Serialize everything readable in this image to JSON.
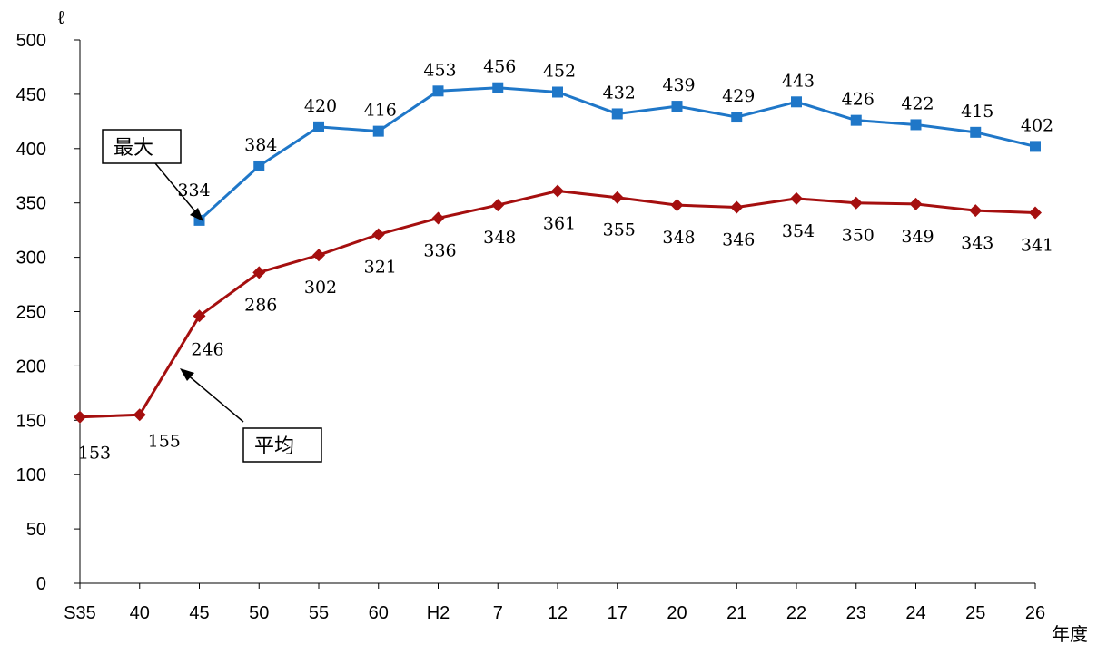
{
  "chart_data": {
    "type": "line",
    "categories": [
      "S35",
      "40",
      "45",
      "50",
      "55",
      "60",
      "H2",
      "7",
      "12",
      "17",
      "20",
      "21",
      "22",
      "23",
      "24",
      "25",
      "26"
    ],
    "series": [
      {
        "name": "最大",
        "color": "#1F77C8",
        "marker": "square",
        "values": [
          null,
          null,
          334,
          384,
          420,
          416,
          453,
          456,
          452,
          432,
          439,
          429,
          443,
          426,
          422,
          415,
          402
        ]
      },
      {
        "name": "平均",
        "color": "#A50F0F",
        "marker": "diamond",
        "values": [
          153,
          155,
          246,
          286,
          302,
          321,
          336,
          348,
          361,
          355,
          348,
          346,
          354,
          350,
          349,
          343,
          341
        ]
      }
    ],
    "ylabel": "ℓ",
    "xlabel": "年度",
    "ylim": [
      0,
      500
    ],
    "yticks": [
      0,
      50,
      100,
      150,
      200,
      250,
      300,
      350,
      400,
      450,
      500
    ],
    "grid": false,
    "legend": "callout-boxes"
  }
}
